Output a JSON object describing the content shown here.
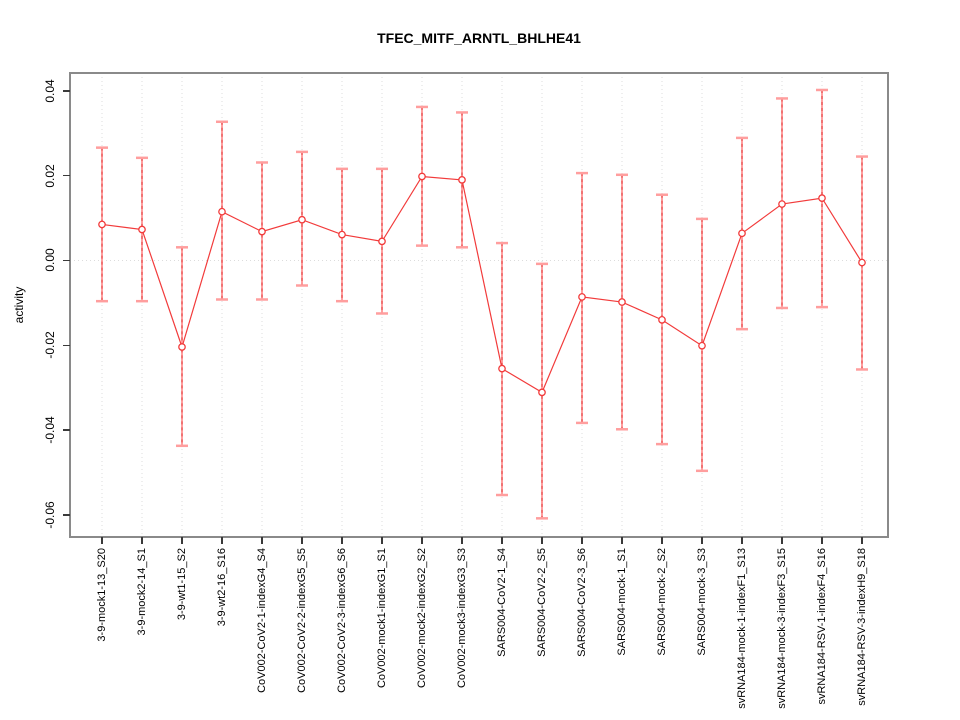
{
  "chart_data": {
    "type": "line",
    "title": "TFEC_MITF_ARNTL_BHLHE41",
    "xlabel": "",
    "ylabel": "activity",
    "legend": "none",
    "grid": "dotted vertical gridline per category, dotted horizontal line at y=0",
    "ylim": [
      -0.0652,
      0.0442
    ],
    "yticks": [
      -0.06,
      -0.04,
      -0.02,
      0.0,
      0.02,
      0.04
    ],
    "ytick_labels": [
      "-0.06",
      "-0.04",
      "-0.02",
      "0.00",
      "0.02",
      "0.04"
    ],
    "categories": [
      "3-9-mock1-13_S20",
      "3-9-mock2-14_S1",
      "3-9-wt1-15_S2",
      "3-9-wt2-16_S16",
      "CoV002-CoV2-1-indexG4_S4",
      "CoV002-CoV2-2-indexG5_S5",
      "CoV002-CoV2-3-indexG6_S6",
      "CoV002-mock1-indexG1_S1",
      "CoV002-mock2-indexG2_S2",
      "CoV002-mock3-indexG3_S3",
      "SARS004-CoV2-1_S4",
      "SARS004-CoV2-2_S5",
      "SARS004-CoV2-3_S6",
      "SARS004-mock-1_S1",
      "SARS004-mock-2_S2",
      "SARS004-mock-3_S3",
      "svRNA184-mock-1-indexF1_S13",
      "svRNA184-mock-3-indexF3_S15",
      "svRNA184-RSV-1-indexF4_S16",
      "svRNA184-RSV-3-indexH9_S18"
    ],
    "series": [
      {
        "name": "activity",
        "values": [
          0.0085,
          0.0073,
          -0.0204,
          0.0115,
          0.0068,
          0.0096,
          0.0061,
          0.0045,
          0.0198,
          0.019,
          -0.0255,
          -0.0311,
          -0.0086,
          -0.0098,
          -0.014,
          -0.0201,
          0.0064,
          0.0133,
          0.0147,
          -0.0005
        ],
        "err_high": [
          0.0266,
          0.0242,
          0.0031,
          0.0327,
          0.0231,
          0.0256,
          0.0216,
          0.0216,
          0.0362,
          0.0349,
          0.0041,
          -0.0008,
          0.0206,
          0.0202,
          0.0155,
          0.0098,
          0.0289,
          0.0382,
          0.0402,
          0.0245
        ],
        "err_low": [
          -0.0096,
          -0.0096,
          -0.0437,
          -0.0092,
          -0.0092,
          -0.0059,
          -0.0096,
          -0.0125,
          0.0035,
          0.0031,
          -0.0553,
          -0.0608,
          -0.0383,
          -0.0398,
          -0.0433,
          -0.0496,
          -0.0162,
          -0.0112,
          -0.011,
          -0.0257
        ]
      }
    ],
    "colors": {
      "line": "#f23b3b",
      "error_bar": "#ff9e9e",
      "error_bar_dash": "#e04848",
      "grid": "#dcdcdc",
      "frame": "#8a8a8a",
      "tick": "#3a3a3a",
      "text": "#000000"
    }
  }
}
